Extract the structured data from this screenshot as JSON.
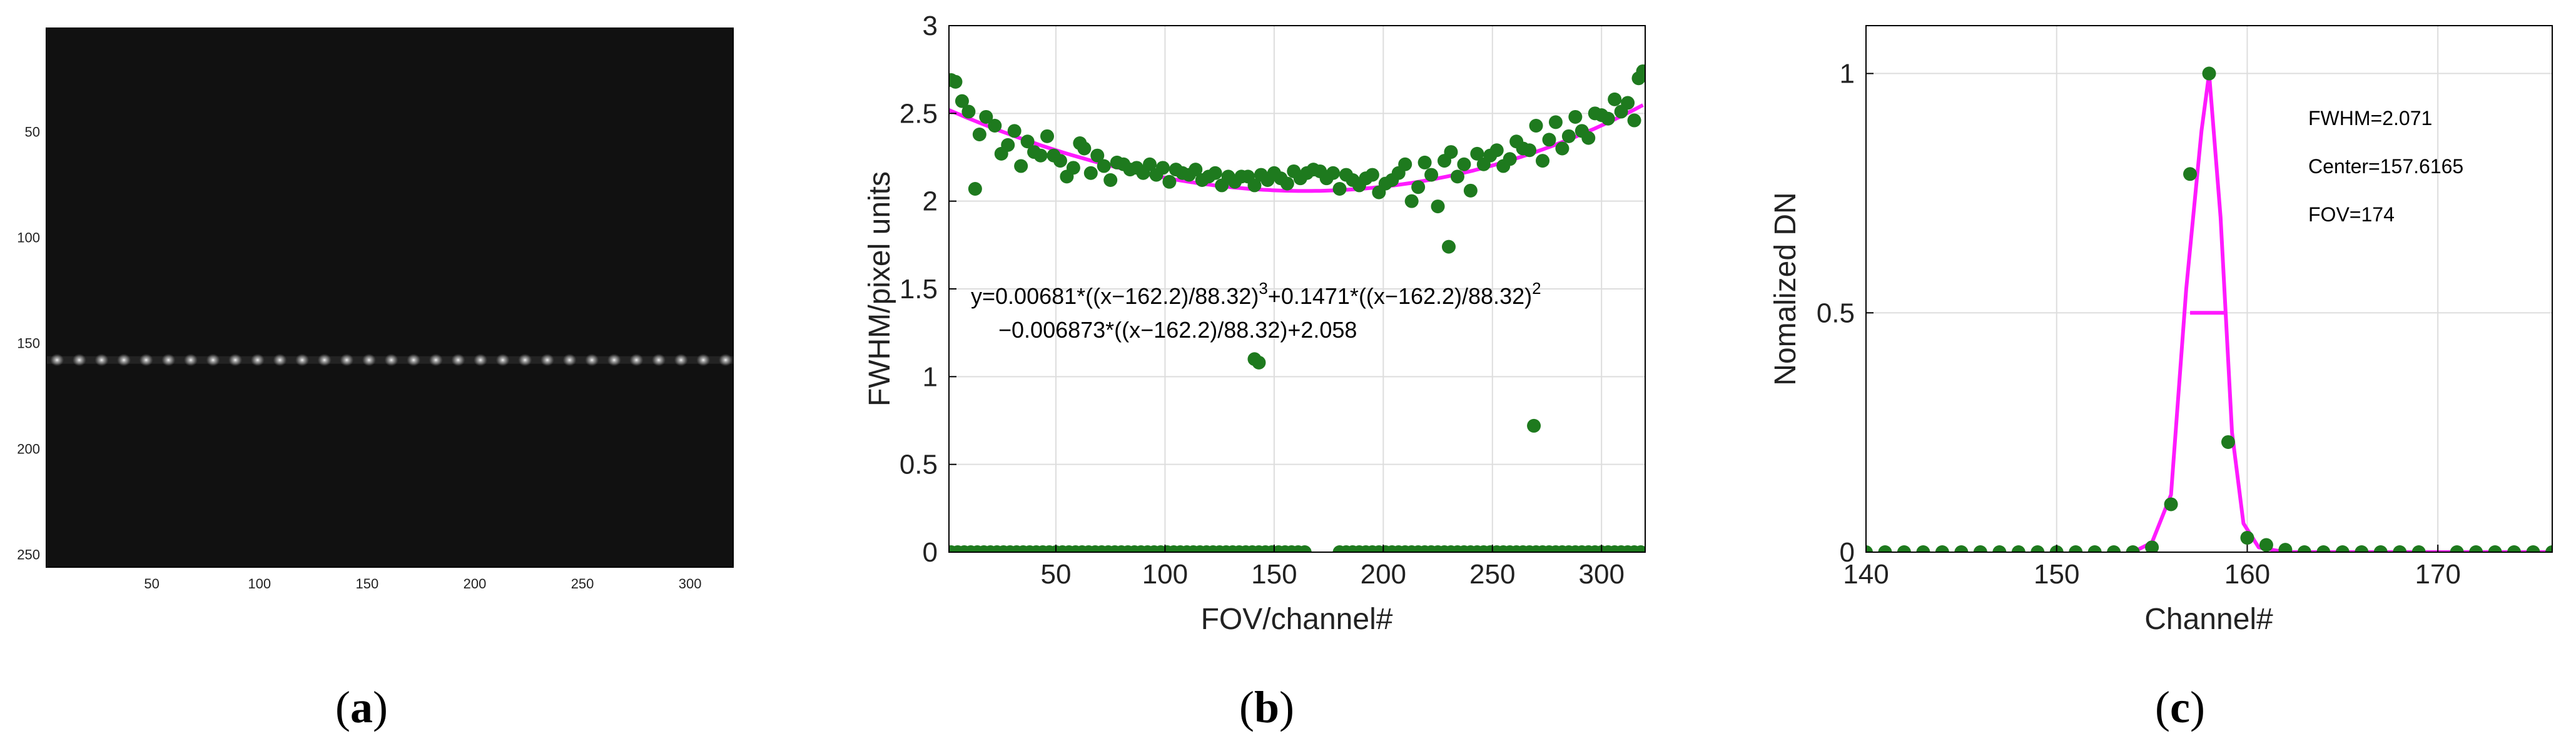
{
  "colors": {
    "marker": "#1e7a1e",
    "fit": "#ff1aff",
    "grid": "#dddddd",
    "axis": "#000000"
  },
  "captions": {
    "a": "a",
    "b": "b",
    "c": "c"
  },
  "chart_data": [
    {
      "type": "heatmap",
      "panel": "a",
      "xlim": [
        1,
        320
      ],
      "ylim": [
        1,
        256
      ],
      "xticks": [
        50,
        100,
        150,
        200,
        250,
        300
      ],
      "yticks": [
        50,
        100,
        150,
        200,
        250
      ],
      "line_row": 158,
      "spot_spacing": 10.35,
      "spot_x_start": 6,
      "spot_count": 31
    },
    {
      "type": "scatter",
      "panel": "b",
      "xlabel": "FOV/channel#",
      "ylabel": "FWHM/pixel units",
      "xlim": [
        1,
        320
      ],
      "ylim": [
        0,
        3
      ],
      "xticks": [
        50,
        100,
        150,
        200,
        250,
        300
      ],
      "yticks": [
        0,
        0.5,
        1,
        1.5,
        2,
        2.5,
        3
      ],
      "grid": true,
      "equation_line1": "y=0.00681*((x−162.2)/88.32)",
      "equation_sup1": "3",
      "equation_mid": "+0.1471*((x−162.2)/88.32)",
      "equation_sup2": "2",
      "equation_line2": "−0.006873*((x−162.2)/88.32)+2.058",
      "fit": {
        "a3": 0.00681,
        "a2": 0.1471,
        "a1": -0.006873,
        "a0": 2.058,
        "mu": 162.2,
        "sigma": 88.32
      },
      "series": [
        {
          "marker": "circle",
          "points": [
            [
              2,
              2.69
            ],
            [
              4,
              2.68
            ],
            [
              7,
              2.57
            ],
            [
              10,
              2.51
            ],
            [
              13,
              2.07
            ],
            [
              15,
              2.38
            ],
            [
              18,
              2.48
            ],
            [
              22,
              2.43
            ],
            [
              25,
              2.27
            ],
            [
              28,
              2.32
            ],
            [
              31,
              2.4
            ],
            [
              34,
              2.2
            ],
            [
              37,
              2.34
            ],
            [
              40,
              2.28
            ],
            [
              43,
              2.26
            ],
            [
              46,
              2.37
            ],
            [
              49,
              2.26
            ],
            [
              52,
              2.23
            ],
            [
              55,
              2.14
            ],
            [
              58,
              2.19
            ],
            [
              61,
              2.33
            ],
            [
              63,
              2.3
            ],
            [
              66,
              2.16
            ],
            [
              69,
              2.26
            ],
            [
              72,
              2.2
            ],
            [
              75,
              2.12
            ],
            [
              78,
              2.22
            ],
            [
              81,
              2.21
            ],
            [
              84,
              2.18
            ],
            [
              87,
              2.19
            ],
            [
              90,
              2.16
            ],
            [
              93,
              2.21
            ],
            [
              96,
              2.15
            ],
            [
              99,
              2.19
            ],
            [
              102,
              2.11
            ],
            [
              105,
              2.18
            ],
            [
              108,
              2.16
            ],
            [
              111,
              2.15
            ],
            [
              114,
              2.18
            ],
            [
              117,
              2.12
            ],
            [
              120,
              2.14
            ],
            [
              123,
              2.16
            ],
            [
              126,
              2.09
            ],
            [
              129,
              2.14
            ],
            [
              132,
              2.11
            ],
            [
              135,
              2.14
            ],
            [
              138,
              2.14
            ],
            [
              141,
              2.09
            ],
            [
              144,
              2.15
            ],
            [
              147,
              2.12
            ],
            [
              150,
              2.16
            ],
            [
              153,
              2.13
            ],
            [
              156,
              2.1
            ],
            [
              159,
              2.17
            ],
            [
              162,
              2.13
            ],
            [
              165,
              2.16
            ],
            [
              168,
              2.18
            ],
            [
              171,
              2.17
            ],
            [
              174,
              2.13
            ],
            [
              177,
              2.16
            ],
            [
              180,
              2.07
            ],
            [
              183,
              2.15
            ],
            [
              186,
              2.12
            ],
            [
              189,
              2.09
            ],
            [
              192,
              2.13
            ],
            [
              195,
              2.15
            ],
            [
              198,
              2.05
            ],
            [
              201,
              2.1
            ],
            [
              204,
              2.12
            ],
            [
              207,
              2.16
            ],
            [
              210,
              2.21
            ],
            [
              213,
              2.0
            ],
            [
              216,
              2.08
            ],
            [
              219,
              2.22
            ],
            [
              222,
              2.15
            ],
            [
              225,
              1.97
            ],
            [
              228,
              2.23
            ],
            [
              231,
              2.28
            ],
            [
              234,
              2.14
            ],
            [
              237,
              2.21
            ],
            [
              240,
              2.06
            ],
            [
              243,
              2.27
            ],
            [
              246,
              2.21
            ],
            [
              249,
              2.26
            ],
            [
              252,
              2.29
            ],
            [
              255,
              2.2
            ],
            [
              258,
              2.24
            ],
            [
              261,
              2.34
            ],
            [
              264,
              2.3
            ],
            [
              267,
              2.29
            ],
            [
              270,
              2.43
            ],
            [
              273,
              2.23
            ],
            [
              276,
              2.35
            ],
            [
              279,
              2.45
            ],
            [
              282,
              2.3
            ],
            [
              285,
              2.37
            ],
            [
              288,
              2.48
            ],
            [
              291,
              2.4
            ],
            [
              294,
              2.36
            ],
            [
              297,
              2.5
            ],
            [
              300,
              2.49
            ],
            [
              303,
              2.47
            ],
            [
              306,
              2.58
            ],
            [
              309,
              2.51
            ],
            [
              312,
              2.56
            ],
            [
              315,
              2.46
            ],
            [
              317,
              2.7
            ],
            [
              319,
              2.74
            ],
            [
              141,
              1.1
            ],
            [
              143,
              1.08
            ],
            [
              230,
              1.74
            ],
            [
              269,
              0.72
            ]
          ],
          "zero_rows": [
            [
              2,
              165
            ],
            [
              180,
              318
            ]
          ],
          "zero_step": 3
        }
      ]
    },
    {
      "type": "line",
      "panel": "c",
      "xlabel": "Channel#",
      "ylabel": "Nomalized DN",
      "xlim": [
        140,
        176
      ],
      "ylim": [
        0,
        1.1
      ],
      "xticks": [
        140,
        150,
        160,
        170
      ],
      "yticks": [
        0,
        0.5,
        1
      ],
      "ytick_labels": [
        "0",
        "0.5",
        "1"
      ],
      "grid": true,
      "annotations": [
        "FWHM=2.071",
        "Center=157.6165",
        "FOV=174"
      ],
      "points": [
        [
          140,
          0
        ],
        [
          141,
          0
        ],
        [
          142,
          0
        ],
        [
          143,
          0
        ],
        [
          144,
          0
        ],
        [
          145,
          0
        ],
        [
          146,
          0
        ],
        [
          147,
          0
        ],
        [
          148,
          0
        ],
        [
          149,
          0
        ],
        [
          150,
          0
        ],
        [
          151,
          0
        ],
        [
          152,
          0
        ],
        [
          153,
          0
        ],
        [
          154,
          0
        ],
        [
          155,
          0.01
        ],
        [
          156,
          0.1
        ],
        [
          157,
          0.79
        ],
        [
          158,
          1.0
        ],
        [
          159,
          0.23
        ],
        [
          160,
          0.03
        ],
        [
          161,
          0.015
        ],
        [
          162,
          0.005
        ],
        [
          163,
          0
        ],
        [
          164,
          0
        ],
        [
          165,
          0
        ],
        [
          166,
          0
        ],
        [
          167,
          0
        ],
        [
          168,
          0
        ],
        [
          169,
          0
        ],
        [
          171,
          0
        ],
        [
          172,
          0
        ],
        [
          173,
          0
        ],
        [
          174,
          0
        ],
        [
          175,
          0
        ],
        [
          176,
          0
        ]
      ],
      "fit_curve": [
        [
          154,
          0
        ],
        [
          155,
          0.02
        ],
        [
          156,
          0.12
        ],
        [
          156.8,
          0.55
        ],
        [
          157.6,
          0.88
        ],
        [
          158,
          1.0
        ],
        [
          158.6,
          0.7
        ],
        [
          159.2,
          0.25
        ],
        [
          159.8,
          0.06
        ],
        [
          160.6,
          0.01
        ],
        [
          162,
          0.0
        ],
        [
          176,
          0
        ]
      ],
      "fwhm_bar": {
        "x1": 157.0,
        "x2": 158.8,
        "y": 0.5
      }
    }
  ]
}
